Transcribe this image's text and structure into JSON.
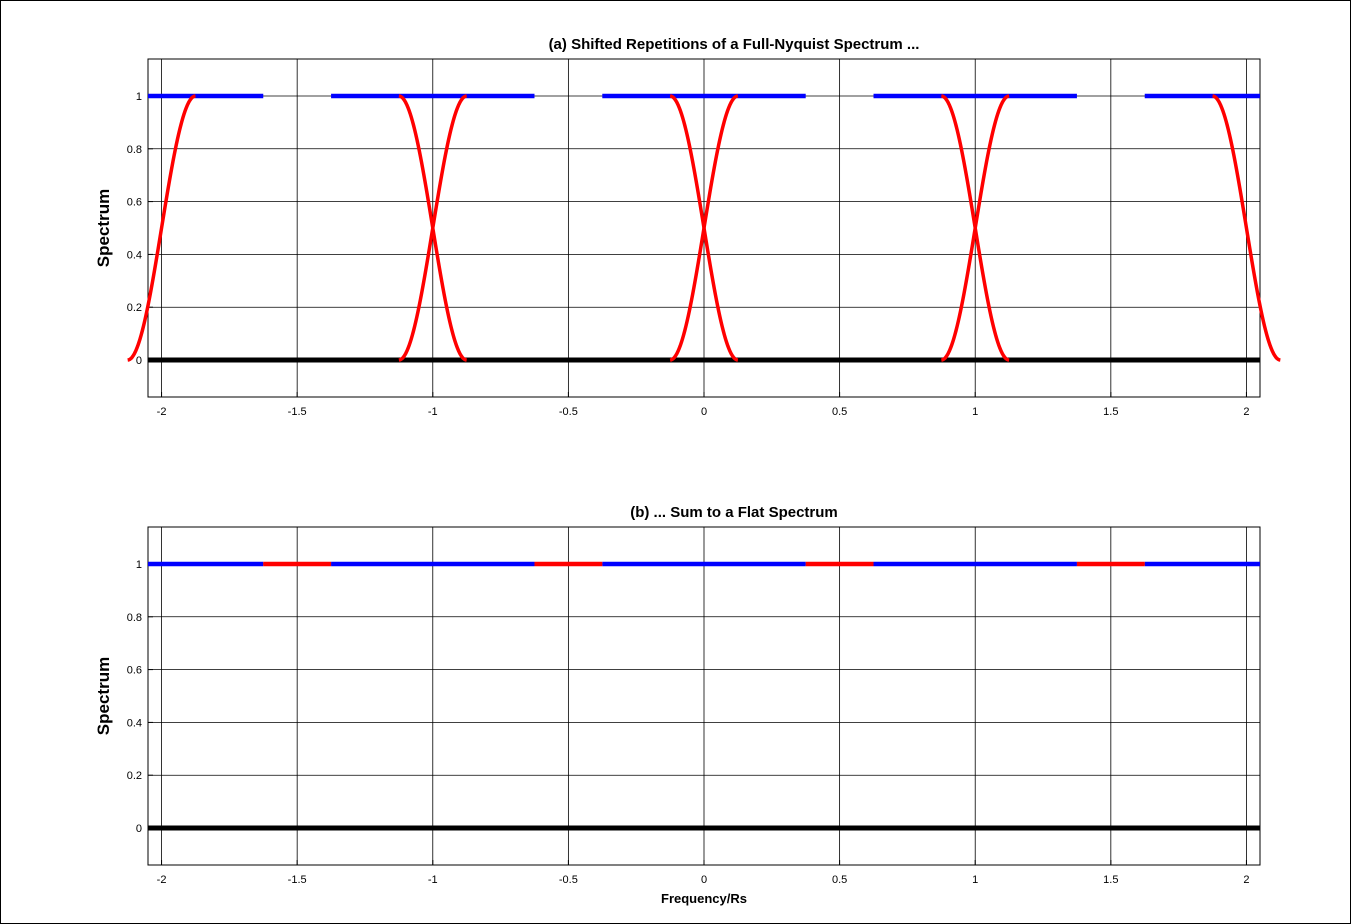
{
  "chart_data": [
    {
      "type": "line",
      "title": "(a) Shifted Repetitions of a Full-Nyquist Spectrum ...",
      "xlabel": "",
      "ylabel": "Spectrum",
      "xlim": [
        -2.05,
        2.05
      ],
      "ylim": [
        -0.14,
        1.14
      ],
      "xticks": [
        -2,
        -1.5,
        -1,
        -0.5,
        0,
        0.5,
        1,
        1.5,
        2
      ],
      "xtick_labels": [
        "-2",
        "-1.5",
        "-1",
        "-0.5",
        "0",
        "0.5",
        "1",
        "1.5",
        "2"
      ],
      "yticks": [
        0,
        0.2,
        0.4,
        0.6,
        0.8,
        1
      ],
      "ytick_labels": [
        "0",
        "0.2",
        "0.4",
        "0.6",
        "0.8",
        "1"
      ],
      "grid": true,
      "colors": {
        "passband": "#0000ff",
        "rolloff": "#ff0000",
        "zero": "#000000"
      },
      "series": [
        {
          "kind": "flat",
          "color": "#0000ff",
          "y": 1,
          "segments": [
            [
              -2.05,
              -1.625
            ],
            [
              -1.375,
              -0.625
            ],
            [
              -0.375,
              0.375
            ],
            [
              0.625,
              1.375
            ],
            [
              1.625,
              2.05
            ]
          ]
        },
        {
          "kind": "flat",
          "color": "#000000",
          "y": 0,
          "segments": [
            [
              -2.05,
              2.05
            ]
          ]
        },
        {
          "kind": "raised_cosine",
          "color": "#ff0000",
          "rolloff": 0.25,
          "centers": [
            -1.5,
            -0.5,
            0.5,
            1.5
          ]
        }
      ]
    },
    {
      "type": "line",
      "title": "(b) ... Sum to a Flat Spectrum",
      "xlabel": "Frequency/Rs",
      "ylabel": "Spectrum",
      "xlim": [
        -2.05,
        2.05
      ],
      "ylim": [
        -0.14,
        1.14
      ],
      "xticks": [
        -2,
        -1.5,
        -1,
        -0.5,
        0,
        0.5,
        1,
        1.5,
        2
      ],
      "xtick_labels": [
        "-2",
        "-1.5",
        "-1",
        "-0.5",
        "0",
        "0.5",
        "1",
        "1.5",
        "2"
      ],
      "yticks": [
        0,
        0.2,
        0.4,
        0.6,
        0.8,
        1
      ],
      "ytick_labels": [
        "0",
        "0.2",
        "0.4",
        "0.6",
        "0.8",
        "1"
      ],
      "grid": true,
      "colors": {
        "passband": "#0000ff",
        "rolloff": "#ff0000",
        "zero": "#000000"
      },
      "series": [
        {
          "kind": "flat",
          "color": "#0000ff",
          "y": 1,
          "segments": [
            [
              -2.05,
              -1.625
            ],
            [
              -1.375,
              -0.625
            ],
            [
              -0.375,
              0.375
            ],
            [
              0.625,
              1.375
            ],
            [
              1.625,
              2.05
            ]
          ]
        },
        {
          "kind": "flat",
          "color": "#ff0000",
          "y": 1,
          "segments": [
            [
              -1.625,
              -1.375
            ],
            [
              -0.625,
              -0.375
            ],
            [
              0.375,
              0.625
            ],
            [
              1.375,
              1.625
            ]
          ]
        },
        {
          "kind": "flat",
          "color": "#000000",
          "y": 0,
          "segments": [
            [
              -2.05,
              2.05
            ]
          ]
        }
      ]
    }
  ]
}
